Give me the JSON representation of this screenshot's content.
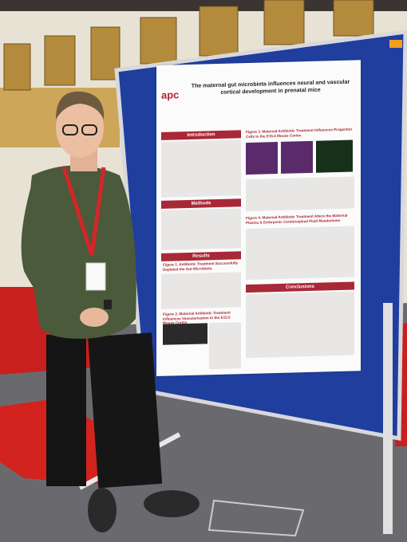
{
  "poster": {
    "logo": "apc",
    "title": "The maternal gut microbiota influences neural and vascular cortical development in prenatal mice",
    "sections": [
      "Introduction",
      "Methods",
      "Results",
      "Conclusions"
    ],
    "figures": [
      "Figure 3. Maternal Antibiotic Treatment Influences Progenitor Cells in the E15.5 Mouse Cortex",
      "Figure 4. Maternal Antibiotic Treatment Alters the Maternal Plasma & Embryonic Cerebrospinal Fluid Metabolome",
      "Figure 1. Antibiotic Treatment Successfully Depleted the Gut Microbiota",
      "Figure 2. Maternal Antibiotic Treatment Influences Vascularisation in the E15.5 Mouse Cortex"
    ]
  }
}
